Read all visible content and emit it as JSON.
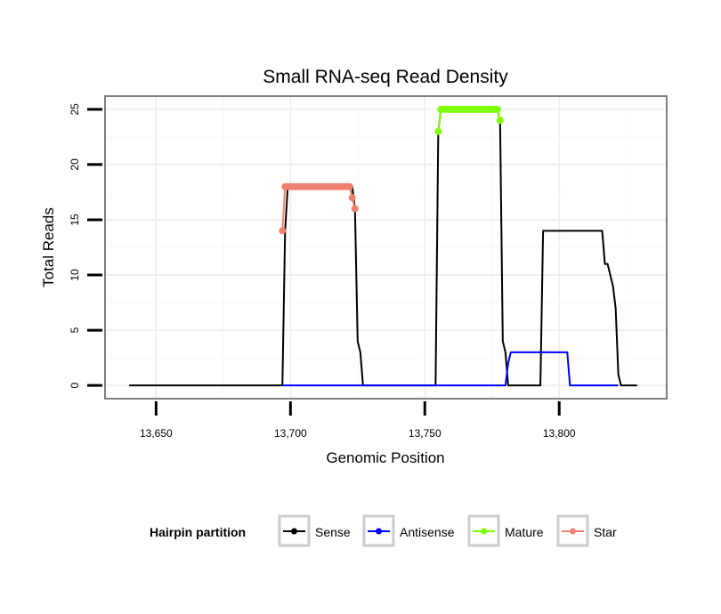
{
  "chart_data": {
    "type": "line",
    "title": "Small RNA-seq Read Density",
    "xlabel": "Genomic Position",
    "ylabel": "Total Reads",
    "xlim": [
      13631,
      13840
    ],
    "ylim": [
      -1.2,
      26.2
    ],
    "x_ticks": [
      13650,
      13700,
      13750,
      13800
    ],
    "x_tick_labels": [
      "13,650",
      "13,700",
      "13,750",
      "13,800"
    ],
    "y_ticks": [
      0,
      5,
      10,
      15,
      20,
      25
    ],
    "y_tick_labels": [
      "0",
      "5",
      "10",
      "15",
      "20",
      "25"
    ],
    "grid": true,
    "legend": {
      "title": "Hairpin partition",
      "position": "bottom",
      "entries": [
        "Sense",
        "Antisense",
        "Mature",
        "Star"
      ]
    },
    "series": [
      {
        "name": "Sense",
        "color": "#000000",
        "marker": false,
        "x": [
          13640,
          13697,
          13698,
          13699,
          13723,
          13724,
          13725,
          13726,
          13727,
          13754,
          13755,
          13756,
          13777,
          13778,
          13779,
          13780,
          13781,
          13793,
          13794,
          13816,
          13817,
          13818,
          13819,
          13820,
          13821,
          13822,
          13823,
          13829
        ],
        "y": [
          0,
          0,
          14,
          18,
          18,
          16,
          4,
          3,
          0,
          0,
          23,
          25,
          25,
          24,
          4,
          3,
          0,
          0,
          14,
          14,
          11,
          11,
          10,
          9,
          7,
          1,
          0,
          0
        ]
      },
      {
        "name": "Antisense",
        "color": "#0000ff",
        "marker": false,
        "x": [
          13697,
          13780,
          13781,
          13782,
          13803,
          13804,
          13822
        ],
        "y": [
          0,
          0,
          2,
          3,
          3,
          0,
          0
        ]
      },
      {
        "name": "Mature",
        "color": "#7fff00",
        "marker": true,
        "x": [
          13755,
          13756,
          13757,
          13758,
          13759,
          13760,
          13761,
          13762,
          13763,
          13764,
          13765,
          13766,
          13767,
          13768,
          13769,
          13770,
          13771,
          13772,
          13773,
          13774,
          13775,
          13776,
          13777,
          13778
        ],
        "y": [
          23,
          25,
          25,
          25,
          25,
          25,
          25,
          25,
          25,
          25,
          25,
          25,
          25,
          25,
          25,
          25,
          25,
          25,
          25,
          25,
          25,
          25,
          25,
          24
        ]
      },
      {
        "name": "Star",
        "color": "#f08070",
        "marker": true,
        "x": [
          13697,
          13698,
          13699,
          13700,
          13701,
          13702,
          13703,
          13704,
          13705,
          13706,
          13707,
          13708,
          13709,
          13710,
          13711,
          13712,
          13713,
          13714,
          13715,
          13716,
          13717,
          13718,
          13719,
          13720,
          13721,
          13722,
          13723,
          13724
        ],
        "y": [
          14,
          18,
          18,
          18,
          18,
          18,
          18,
          18,
          18,
          18,
          18,
          18,
          18,
          18,
          18,
          18,
          18,
          18,
          18,
          18,
          18,
          18,
          18,
          18,
          18,
          18,
          17,
          16
        ]
      }
    ]
  }
}
